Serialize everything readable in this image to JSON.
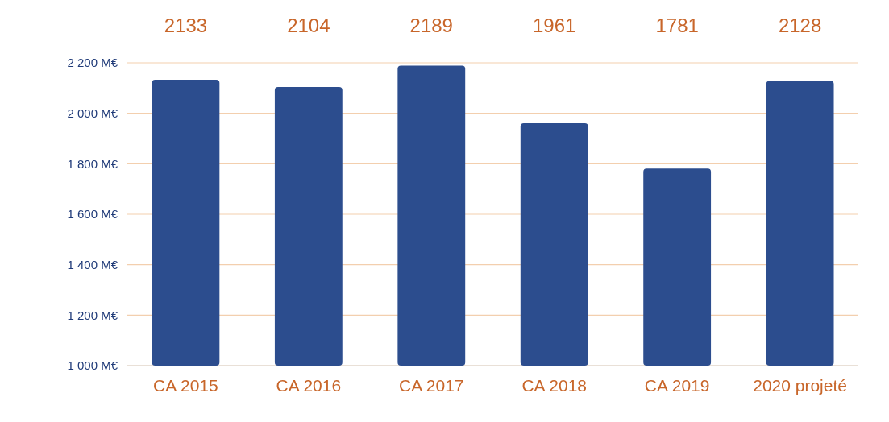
{
  "chart_data": {
    "type": "bar",
    "categories": [
      "CA 2015",
      "CA 2016",
      "CA 2017",
      "CA 2018",
      "CA 2019",
      "2020 projeté"
    ],
    "values": [
      2133,
      2104,
      2189,
      1961,
      1781,
      2128
    ],
    "color": "#2c4d8e",
    "ylim": [
      1000,
      2200
    ],
    "yticks": [
      {
        "value": 1000,
        "label": "1 000 M€"
      },
      {
        "value": 1200,
        "label": "1 200 M€"
      },
      {
        "value": 1400,
        "label": "1 400 M€"
      },
      {
        "value": 1600,
        "label": "1 600 M€"
      },
      {
        "value": 1800,
        "label": "1 800 M€"
      },
      {
        "value": 2000,
        "label": "2 000 M€"
      },
      {
        "value": 2200,
        "label": "2 200 M€"
      }
    ],
    "grid": "y",
    "data_labels": true
  }
}
